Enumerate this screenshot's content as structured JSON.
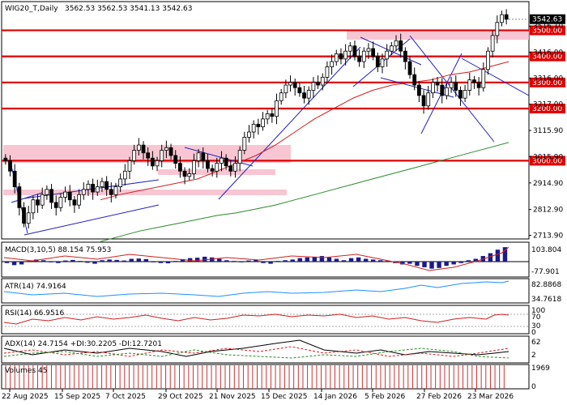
{
  "chart_data": {
    "type": "candlestick",
    "instrument": "WIG20_T,Daily",
    "ohlc_header": "3562.53 3562.53 3541.13 3542.63",
    "ylim": [
      2700,
      3610
    ],
    "y_ticks": [
      "3516.10",
      "3416.00",
      "3316.00",
      "3217.00",
      "3115.90",
      "3015.90",
      "2914.90",
      "2812.90",
      "2713.90"
    ],
    "x_labels": [
      "22 Aug 2025",
      "15 Sep 2025",
      "7 Oct 2025",
      "29 Oct 2025",
      "21 Nov 2025",
      "15 Dec 2025",
      "14 Jan 2026",
      "5 Feb 2026",
      "27 Feb 2026",
      "23 Mar 2026"
    ],
    "levels": [
      {
        "value": 3500,
        "label": "3500.00"
      },
      {
        "value": 3400,
        "label": "3400.00"
      },
      {
        "value": 3300,
        "label": "3300.00"
      },
      {
        "value": 3200,
        "label": "3200.00"
      },
      {
        "value": 3000,
        "label": "3000.00"
      }
    ],
    "last_price": {
      "value": 3542.63,
      "label": "3542.63"
    },
    "closes": [
      3000,
      2960,
      2900,
      2820,
      2760,
      2800,
      2850,
      2830,
      2870,
      2890,
      2840,
      2820,
      2860,
      2880,
      2850,
      2830,
      2870,
      2890,
      2910,
      2880,
      2900,
      2920,
      2890,
      2870,
      2900,
      2930,
      2960,
      3000,
      3040,
      3060,
      3030,
      3010,
      2980,
      3000,
      3040,
      3050,
      3020,
      2990,
      2960,
      2940,
      2950,
      3000,
      3030,
      3000,
      2970,
      2960,
      2990,
      3010,
      2980,
      2960,
      2990,
      3040,
      3090,
      3110,
      3140,
      3130,
      3160,
      3180,
      3170,
      3230,
      3260,
      3290,
      3300,
      3280,
      3260,
      3240,
      3270,
      3300,
      3290,
      3320,
      3360,
      3380,
      3410,
      3390,
      3420,
      3440,
      3400,
      3380,
      3420,
      3430,
      3400,
      3360,
      3390,
      3420,
      3440,
      3460,
      3420,
      3380,
      3330,
      3290,
      3250,
      3210,
      3260,
      3300,
      3290,
      3250,
      3280,
      3300,
      3270,
      3240,
      3270,
      3310,
      3300,
      3280,
      3350,
      3420,
      3480,
      3530,
      3560,
      3542.63
    ],
    "ma50": [
      2850,
      2870,
      2885,
      2900,
      2915,
      2930,
      2960,
      2990,
      3020,
      3060,
      3110,
      3160,
      3200,
      3240,
      3270,
      3290,
      3300,
      3310,
      3330,
      3340,
      3360,
      3380
    ],
    "ma200": [
      2690,
      2710,
      2730,
      2745,
      2760,
      2775,
      2790,
      2800,
      2815,
      2830,
      2850,
      2870,
      2890,
      2910,
      2930,
      2950,
      2970,
      2990,
      3010,
      3030,
      3050,
      3070
    ],
    "indicators": {
      "macd": {
        "label": "MACD(3,10,5) 88.154 75.953",
        "max": "103.804",
        "min": "-77.901",
        "hist": [
          -10,
          -25,
          -20,
          5,
          15,
          10,
          -5,
          -10,
          8,
          12,
          5,
          -8,
          -15,
          10,
          15,
          12,
          8,
          20,
          22,
          18,
          -5,
          -10,
          -12,
          5,
          18,
          25,
          28,
          35,
          30,
          20,
          10,
          5,
          -5,
          8,
          12,
          -10,
          -15,
          5,
          10,
          15,
          25,
          30,
          35,
          40,
          30,
          20,
          10,
          25,
          30,
          20,
          15,
          10,
          5,
          -10,
          -20,
          -15,
          -30,
          -40,
          -50,
          -45,
          -30,
          -20,
          -10,
          10,
          20,
          40,
          60,
          85,
          103
        ]
      },
      "atr": {
        "label": "ATR(14) 74.9164",
        "max": "82.8868",
        "min": "34.7618"
      },
      "rsi": {
        "label": "RSI(14) 66.9516",
        "max": "100",
        "upper": "70",
        "lower": "30",
        "min": "0"
      },
      "adx": {
        "label": "ADX(14) 24.7154 +DI:30.2205 -DI:12.7201",
        "max": "62",
        "min": "2"
      },
      "volumes": {
        "label": "Volumes 45",
        "max": "1969",
        "min": "0"
      }
    }
  }
}
